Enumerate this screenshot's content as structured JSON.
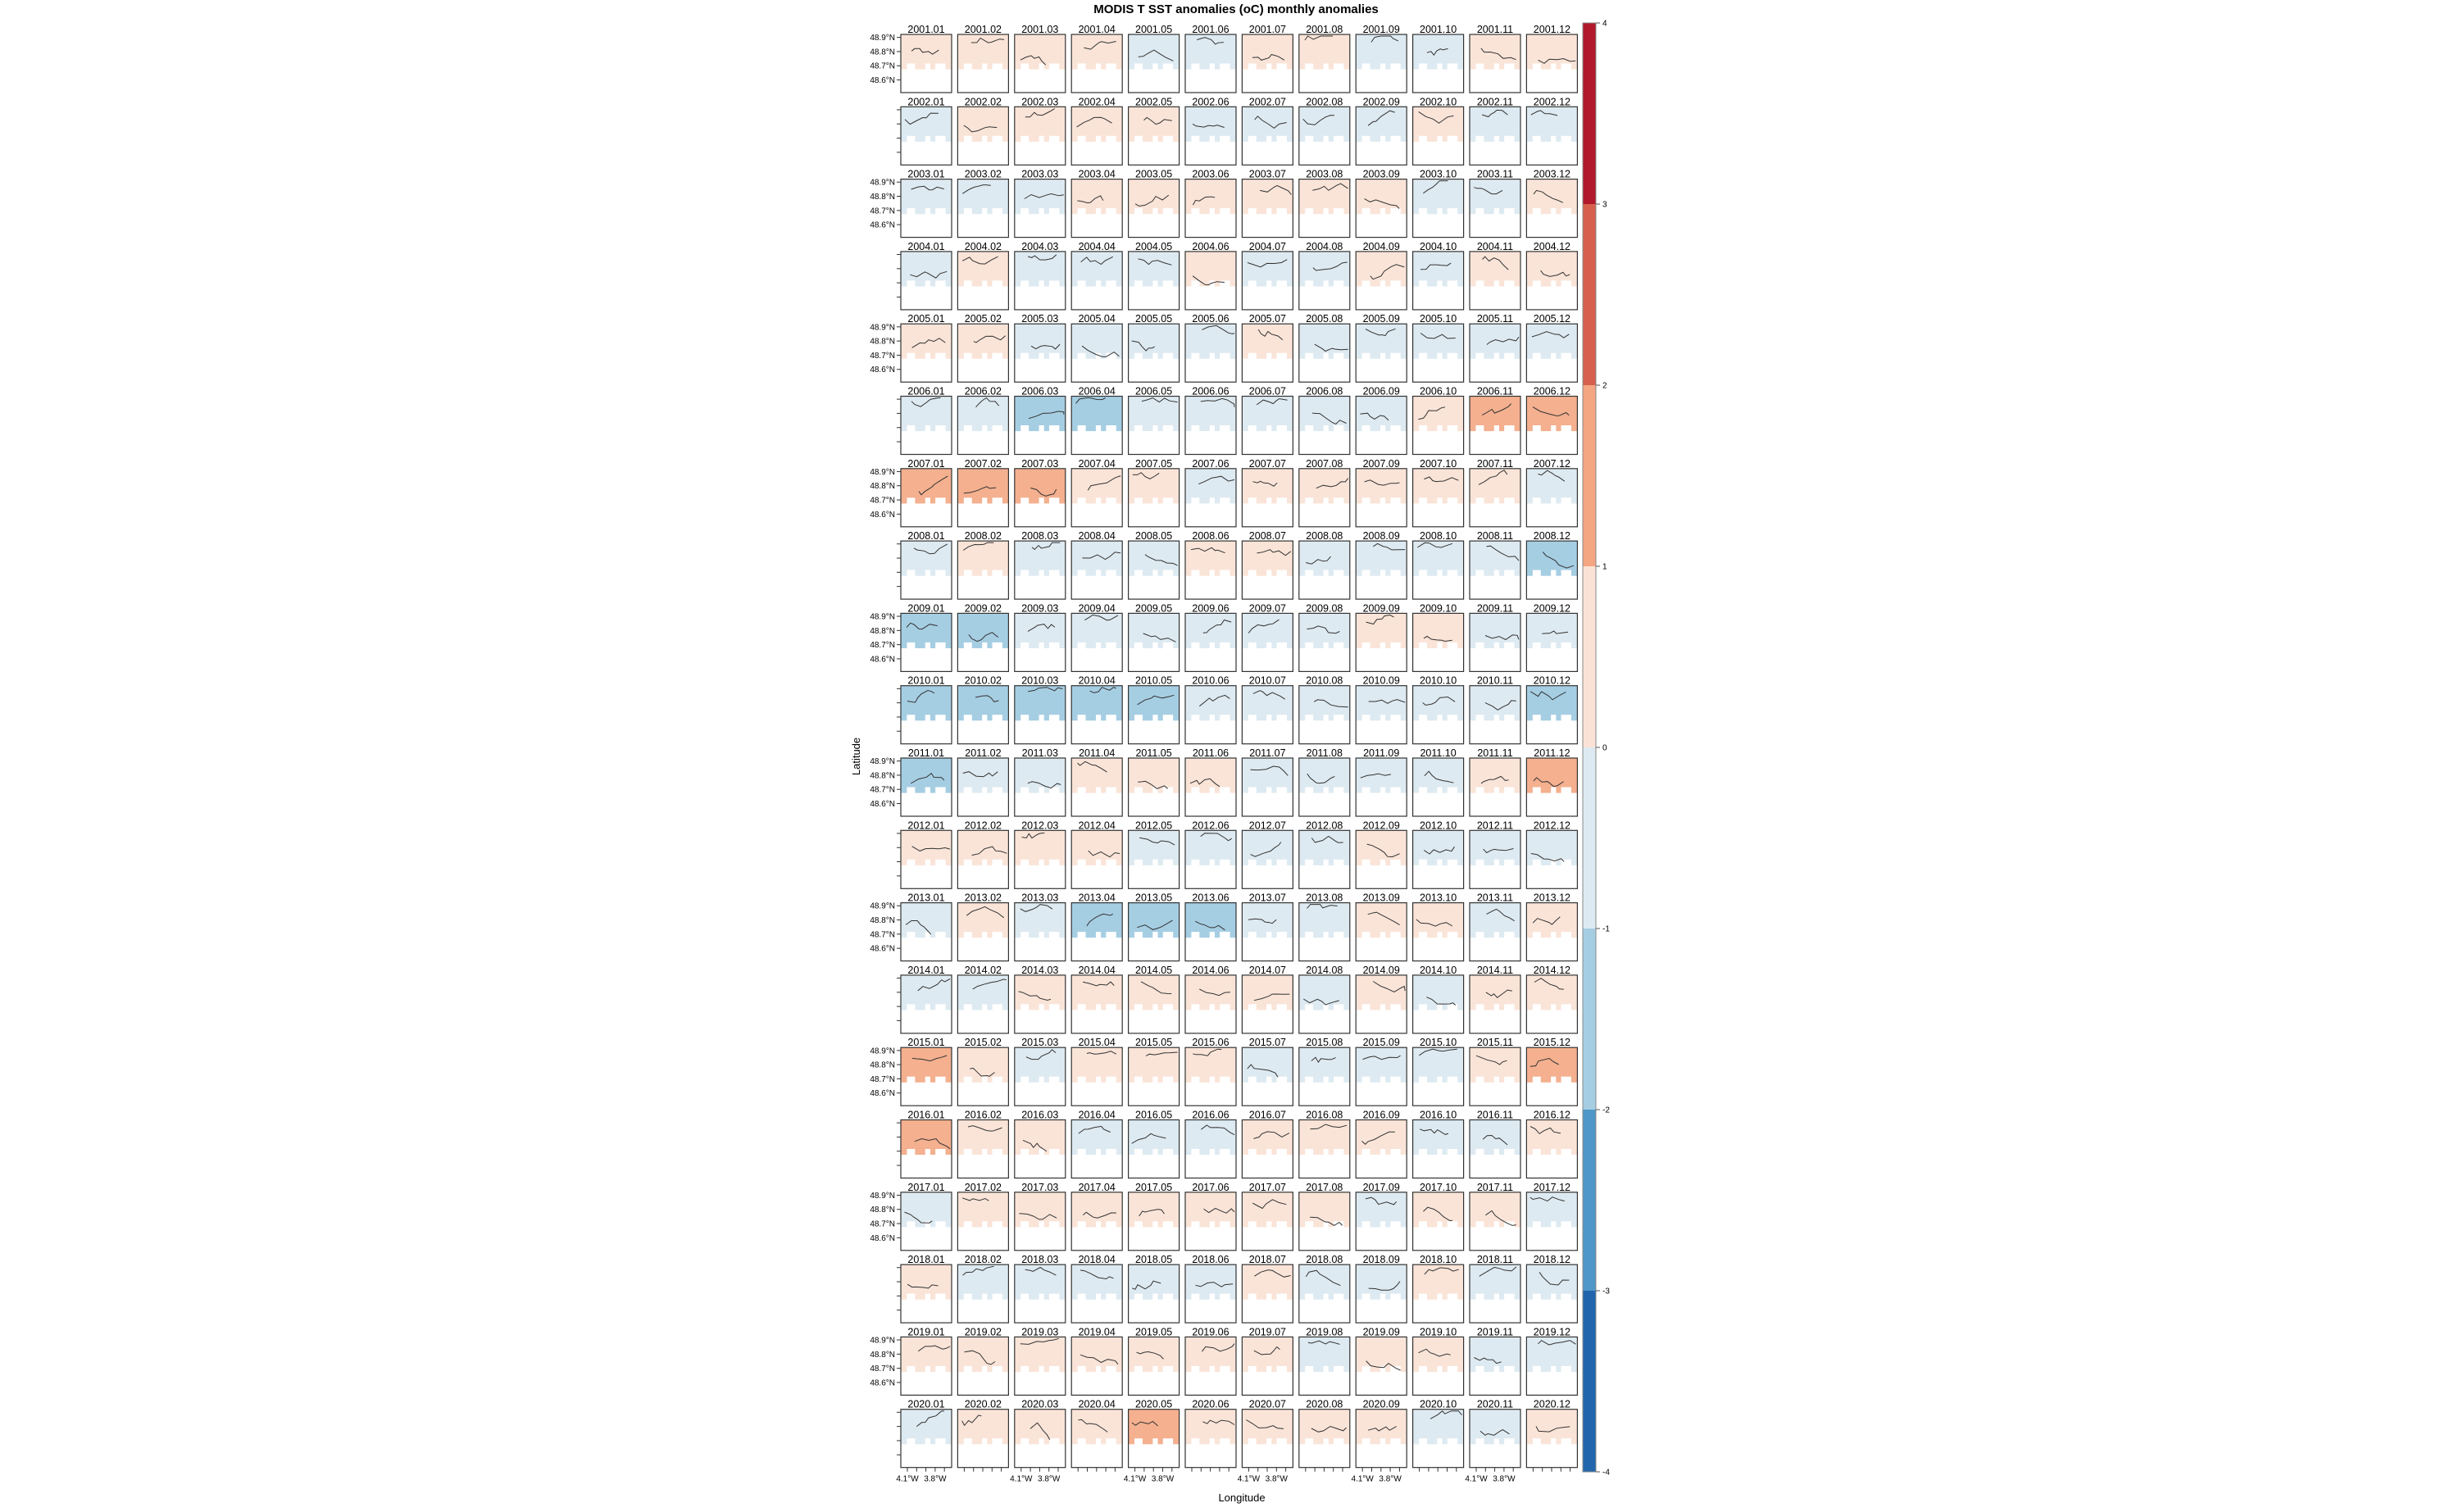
{
  "chart_data": {
    "type": "heatmap",
    "title": "MODIS T SST anomalies (oC) monthly anomalies",
    "xlabel": "Longitude",
    "ylabel": "Latitude",
    "yticks": [
      {
        "value": 48.9,
        "label": "48.9°N"
      },
      {
        "value": 48.8,
        "label": "48.8°N"
      },
      {
        "value": 48.7,
        "label": "48.7°N"
      },
      {
        "value": 48.6,
        "label": "48.6°N"
      }
    ],
    "xticks": [
      {
        "value": -4.1,
        "label": "4.1°W"
      },
      {
        "value": -4.0,
        "label": ""
      },
      {
        "value": -3.9,
        "label": ""
      },
      {
        "value": -3.8,
        "label": "3.8°W"
      },
      {
        "value": -3.7,
        "label": ""
      }
    ],
    "colorbar": {
      "breaks": [
        4,
        3,
        2,
        1,
        0,
        -1,
        -2,
        -3,
        -4
      ],
      "labels": [
        "4",
        "3",
        "2",
        "1",
        "0",
        "-1",
        "-2",
        "-3",
        "-4"
      ],
      "colors": [
        "#B2182B",
        "#D6604D",
        "#F4A582",
        "#FAE3D6",
        "#DDEAF1",
        "#A6CEE3",
        "#4F97C8",
        "#2166AC"
      ]
    },
    "panel_fill_colors": {
      "1.5": "#F4B08F",
      "0.5": "#FAE4D8",
      "-0.5": "#DEEAF1",
      "-1.5": "#A6CEE3"
    },
    "months": [
      "01",
      "02",
      "03",
      "04",
      "05",
      "06",
      "07",
      "08",
      "09",
      "10",
      "11",
      "12"
    ],
    "rows": [
      {
        "year": "2001",
        "values": [
          0.5,
          0.5,
          0.5,
          0.5,
          -0.5,
          -0.5,
          0.5,
          0.5,
          -0.5,
          -0.5,
          0.5,
          0.5
        ]
      },
      {
        "year": "2002",
        "values": [
          -0.5,
          0.5,
          0.5,
          0.5,
          0.5,
          -0.5,
          -0.5,
          -0.5,
          -0.5,
          0.5,
          -0.5,
          -0.5
        ]
      },
      {
        "year": "2003",
        "values": [
          -0.5,
          -0.5,
          -0.5,
          0.5,
          0.5,
          0.5,
          0.5,
          0.5,
          0.5,
          -0.5,
          -0.5,
          0.5
        ]
      },
      {
        "year": "2004",
        "values": [
          -0.5,
          0.5,
          -0.5,
          -0.5,
          -0.5,
          0.5,
          -0.5,
          -0.5,
          0.5,
          -0.5,
          0.5,
          0.5
        ]
      },
      {
        "year": "2005",
        "values": [
          0.5,
          0.5,
          -0.5,
          -0.5,
          -0.5,
          -0.5,
          0.5,
          -0.5,
          -0.5,
          -0.5,
          -0.5,
          -0.5
        ]
      },
      {
        "year": "2006",
        "values": [
          -0.5,
          -0.5,
          -1.5,
          -1.5,
          -0.5,
          -0.5,
          -0.5,
          -0.5,
          -0.5,
          0.5,
          1.5,
          1.5
        ]
      },
      {
        "year": "2007",
        "values": [
          1.5,
          1.5,
          1.5,
          0.5,
          0.5,
          -0.5,
          0.5,
          0.5,
          0.5,
          0.5,
          0.5,
          -0.5
        ]
      },
      {
        "year": "2008",
        "values": [
          -0.5,
          0.5,
          -0.5,
          -0.5,
          -0.5,
          0.5,
          0.5,
          -0.5,
          -0.5,
          -0.5,
          -0.5,
          -1.5
        ]
      },
      {
        "year": "2009",
        "values": [
          -1.5,
          -1.5,
          -0.5,
          -0.5,
          -0.5,
          -0.5,
          -0.5,
          -0.5,
          0.5,
          0.5,
          -0.5,
          -0.5
        ]
      },
      {
        "year": "2010",
        "values": [
          -1.5,
          -1.5,
          -1.5,
          -1.5,
          -1.5,
          -0.5,
          -0.5,
          -0.5,
          -0.5,
          -0.5,
          -0.5,
          -1.5
        ]
      },
      {
        "year": "2011",
        "values": [
          -1.5,
          -0.5,
          -0.5,
          0.5,
          0.5,
          0.5,
          -0.5,
          -0.5,
          -0.5,
          -0.5,
          0.5,
          1.5
        ]
      },
      {
        "year": "2012",
        "values": [
          0.5,
          0.5,
          0.5,
          0.5,
          -0.5,
          -0.5,
          -0.5,
          -0.5,
          0.5,
          -0.5,
          -0.5,
          -0.5
        ]
      },
      {
        "year": "2013",
        "values": [
          -0.5,
          0.5,
          -0.5,
          -1.5,
          -1.5,
          -1.5,
          -0.5,
          -0.5,
          0.5,
          0.5,
          -0.5,
          0.5
        ]
      },
      {
        "year": "2014",
        "values": [
          -0.5,
          -0.5,
          0.5,
          0.5,
          0.5,
          0.5,
          0.5,
          -0.5,
          0.5,
          -0.5,
          0.5,
          0.5
        ]
      },
      {
        "year": "2015",
        "values": [
          1.5,
          0.5,
          -0.5,
          0.5,
          0.5,
          0.5,
          -0.5,
          -0.5,
          -0.5,
          -0.5,
          0.5,
          1.5
        ]
      },
      {
        "year": "2016",
        "values": [
          1.5,
          0.5,
          0.5,
          -0.5,
          -0.5,
          -0.5,
          0.5,
          0.5,
          0.5,
          -0.5,
          -0.5,
          0.5
        ]
      },
      {
        "year": "2017",
        "values": [
          -0.5,
          0.5,
          0.5,
          0.5,
          0.5,
          0.5,
          0.5,
          0.5,
          -0.5,
          0.5,
          0.5,
          -0.5
        ]
      },
      {
        "year": "2018",
        "values": [
          0.5,
          -0.5,
          -0.5,
          -0.5,
          -0.5,
          -0.5,
          0.5,
          -0.5,
          -0.5,
          0.5,
          -0.5,
          -0.5
        ]
      },
      {
        "year": "2019",
        "values": [
          0.5,
          0.5,
          0.5,
          0.5,
          0.5,
          0.5,
          0.5,
          -0.5,
          0.5,
          0.5,
          -0.5,
          -0.5
        ]
      },
      {
        "year": "2020",
        "values": [
          -0.5,
          0.5,
          0.5,
          0.5,
          1.5,
          0.5,
          0.5,
          0.5,
          0.5,
          -0.5,
          -0.5,
          0.5
        ]
      }
    ]
  }
}
